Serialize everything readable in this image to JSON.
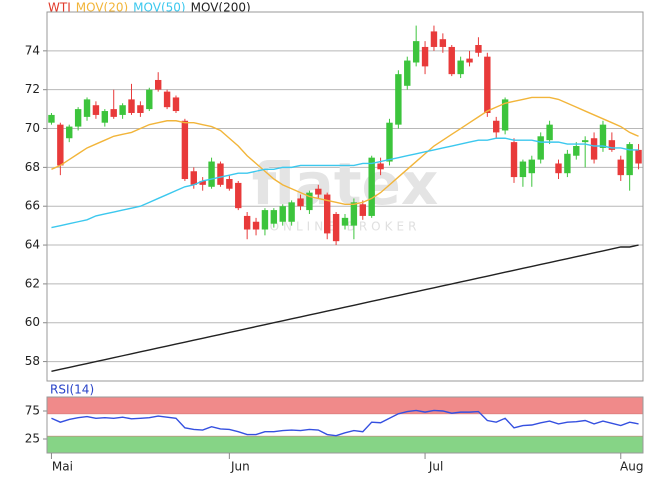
{
  "chart_data": [
    {
      "type": "candlestick",
      "categories": [
        "Mai",
        null,
        null,
        null,
        null,
        null,
        null,
        null,
        null,
        null,
        null,
        null,
        null,
        null,
        null,
        null,
        null,
        null,
        null,
        null,
        "Jun",
        null,
        null,
        null,
        null,
        null,
        null,
        null,
        null,
        null,
        null,
        null,
        null,
        null,
        null,
        null,
        null,
        null,
        null,
        null,
        null,
        null,
        "Jul",
        null,
        null,
        null,
        null,
        null,
        null,
        null,
        null,
        null,
        null,
        null,
        null,
        null,
        null,
        null,
        null,
        null,
        null,
        null,
        null,
        null,
        "Aug",
        null,
        null
      ],
      "watermark": {
        "text": "flatex",
        "subtext": "ONLINE BROKER"
      },
      "ylim": [
        57,
        76
      ],
      "yticks": [
        58,
        60,
        62,
        64,
        66,
        68,
        70,
        72,
        74
      ],
      "grid": true,
      "series": [
        {
          "name": "WTI",
          "color": "#e03a2a",
          "up_color": "#3cc43c",
          "down_color": "#e83a3a",
          "open": [
            70.3,
            70.2,
            69.5,
            70.1,
            70.6,
            71.2,
            70.3,
            71.0,
            70.7,
            71.5,
            71.2,
            71.0,
            72.5,
            71.9,
            71.6,
            70.4,
            67.8,
            67.3,
            67.0,
            68.2,
            67.4,
            67.2,
            65.5,
            65.2,
            64.8,
            65.1,
            65.2,
            65.2,
            66.4,
            65.8,
            66.9,
            66.6,
            65.6,
            65.0,
            65.0,
            66.1,
            65.5,
            68.2,
            68.3,
            70.2,
            72.2,
            73.4,
            74.2,
            75.0,
            74.6,
            74.2,
            72.8,
            73.6,
            74.3,
            73.7,
            70.4,
            69.9,
            69.3,
            67.5,
            67.7,
            68.4,
            69.4,
            68.2,
            67.7,
            68.6,
            69.3,
            69.5,
            69.0,
            69.4,
            68.4,
            67.6,
            68.9
          ],
          "high": [
            70.8,
            70.3,
            70.2,
            71.1,
            71.6,
            71.4,
            71.0,
            72.0,
            71.3,
            72.3,
            71.4,
            72.1,
            72.9,
            72.0,
            71.7,
            70.5,
            68.0,
            67.5,
            68.5,
            68.3,
            67.6,
            67.3,
            65.7,
            65.4,
            65.9,
            65.9,
            66.1,
            66.3,
            66.6,
            66.8,
            67.1,
            66.7,
            65.7,
            65.6,
            66.4,
            66.3,
            68.6,
            68.5,
            70.5,
            73.0,
            73.7,
            75.3,
            74.5,
            75.3,
            74.9,
            74.3,
            73.7,
            74.0,
            74.7,
            73.9,
            70.6,
            71.6,
            69.5,
            68.4,
            68.6,
            69.8,
            70.4,
            68.4,
            68.9,
            69.3,
            69.6,
            69.8,
            70.4,
            69.8,
            68.6,
            69.3,
            69.2
          ],
          "low": [
            70.2,
            67.6,
            69.3,
            69.9,
            70.4,
            70.5,
            70.1,
            70.5,
            70.5,
            70.7,
            70.6,
            70.9,
            71.9,
            71.0,
            70.8,
            67.3,
            66.9,
            66.8,
            66.9,
            67.0,
            66.8,
            65.8,
            64.3,
            64.5,
            64.5,
            64.9,
            65.0,
            65.0,
            65.8,
            65.6,
            66.4,
            64.3,
            64.0,
            64.8,
            64.3,
            65.3,
            65.4,
            67.6,
            68.1,
            70.0,
            72.0,
            73.2,
            72.8,
            74.0,
            73.9,
            72.7,
            72.6,
            73.2,
            73.7,
            70.6,
            69.5,
            69.7,
            67.2,
            67.0,
            67.0,
            68.2,
            69.2,
            67.4,
            67.5,
            68.4,
            68.0,
            68.2,
            68.8,
            68.8,
            67.3,
            66.8,
            67.9
          ],
          "close": [
            70.7,
            68.1,
            70.1,
            71.0,
            71.5,
            70.7,
            70.9,
            70.6,
            71.2,
            70.8,
            70.8,
            72.0,
            72.0,
            71.1,
            70.9,
            67.4,
            67.1,
            67.1,
            68.3,
            67.1,
            66.9,
            65.9,
            64.8,
            64.8,
            65.8,
            65.8,
            66.0,
            66.2,
            66.0,
            66.7,
            66.6,
            64.6,
            64.2,
            65.4,
            66.2,
            65.5,
            68.5,
            67.9,
            70.3,
            72.8,
            73.5,
            74.5,
            73.2,
            74.2,
            74.2,
            72.8,
            73.5,
            73.4,
            73.9,
            70.8,
            69.8,
            71.5,
            67.5,
            68.3,
            68.4,
            69.6,
            70.2,
            67.7,
            68.7,
            69.1,
            69.4,
            68.4,
            70.2,
            68.9,
            67.6,
            69.2,
            68.2
          ]
        },
        {
          "name": "MOV(20)",
          "color": "#f2b53a",
          "values": [
            67.9,
            68.1,
            68.4,
            68.7,
            69.0,
            69.2,
            69.4,
            69.6,
            69.7,
            69.8,
            70.0,
            70.2,
            70.3,
            70.4,
            70.4,
            70.3,
            70.3,
            70.2,
            70.1,
            69.9,
            69.5,
            69.1,
            68.6,
            68.2,
            67.8,
            67.4,
            67.1,
            66.9,
            66.7,
            66.5,
            66.4,
            66.3,
            66.2,
            66.1,
            66.1,
            66.2,
            66.4,
            66.7,
            67.1,
            67.5,
            67.9,
            68.3,
            68.7,
            69.1,
            69.4,
            69.7,
            70.0,
            70.3,
            70.6,
            70.9,
            71.1,
            71.3,
            71.4,
            71.5,
            71.6,
            71.6,
            71.6,
            71.5,
            71.3,
            71.1,
            70.9,
            70.7,
            70.5,
            70.3,
            70.1,
            69.8,
            69.6
          ]
        },
        {
          "name": "MOV(50)",
          "color": "#3cc8ee",
          "values": [
            64.9,
            65.0,
            65.1,
            65.2,
            65.3,
            65.5,
            65.6,
            65.7,
            65.8,
            65.9,
            66.0,
            66.2,
            66.4,
            66.6,
            66.8,
            67.0,
            67.1,
            67.3,
            67.4,
            67.5,
            67.6,
            67.7,
            67.7,
            67.8,
            67.9,
            67.9,
            68.0,
            68.0,
            68.1,
            68.1,
            68.1,
            68.1,
            68.1,
            68.1,
            68.1,
            68.2,
            68.2,
            68.3,
            68.4,
            68.5,
            68.6,
            68.7,
            68.8,
            68.9,
            69.0,
            69.1,
            69.2,
            69.3,
            69.4,
            69.4,
            69.5,
            69.5,
            69.4,
            69.4,
            69.4,
            69.3,
            69.3,
            69.3,
            69.2,
            69.2,
            69.2,
            69.1,
            69.1,
            69.0,
            69.0,
            68.9,
            68.9
          ]
        },
        {
          "name": "MOV(200)",
          "color": "#222222",
          "values": [
            57.5,
            57.6,
            57.7,
            57.8,
            57.9,
            58.0,
            58.1,
            58.2,
            58.3,
            58.4,
            58.5,
            58.6,
            58.7,
            58.8,
            58.9,
            59.0,
            59.1,
            59.2,
            59.3,
            59.4,
            59.5,
            59.6,
            59.7,
            59.8,
            59.9,
            60.0,
            60.1,
            60.2,
            60.3,
            60.4,
            60.5,
            60.6,
            60.7,
            60.8,
            60.9,
            61.0,
            61.1,
            61.2,
            61.3,
            61.4,
            61.5,
            61.6,
            61.7,
            61.8,
            61.9,
            62.0,
            62.1,
            62.2,
            62.3,
            62.4,
            62.5,
            62.6,
            62.7,
            62.8,
            62.9,
            63.0,
            63.1,
            63.2,
            63.3,
            63.4,
            63.5,
            63.6,
            63.7,
            63.8,
            63.9,
            63.9,
            64.0
          ]
        }
      ]
    },
    {
      "type": "line",
      "title": "RSI(14)",
      "title_color": "#2a44c8",
      "ylim": [
        0,
        100
      ],
      "yticks": [
        25,
        75
      ],
      "bands": [
        {
          "from": 70,
          "to": 100,
          "color": "#f08a8a"
        },
        {
          "from": 0,
          "to": 30,
          "color": "#86d486"
        }
      ],
      "series": [
        {
          "color": "#3550e0",
          "values": [
            62,
            55,
            60,
            63,
            65,
            62,
            63,
            62,
            64,
            61,
            62,
            63,
            66,
            64,
            62,
            45,
            42,
            41,
            47,
            43,
            42,
            38,
            33,
            33,
            38,
            38,
            40,
            41,
            40,
            42,
            41,
            33,
            31,
            36,
            40,
            38,
            55,
            54,
            62,
            70,
            74,
            76,
            73,
            76,
            75,
            71,
            73,
            73,
            74,
            58,
            55,
            62,
            45,
            49,
            50,
            54,
            57,
            52,
            55,
            56,
            58,
            52,
            57,
            53,
            49,
            55,
            52
          ]
        }
      ]
    }
  ]
}
